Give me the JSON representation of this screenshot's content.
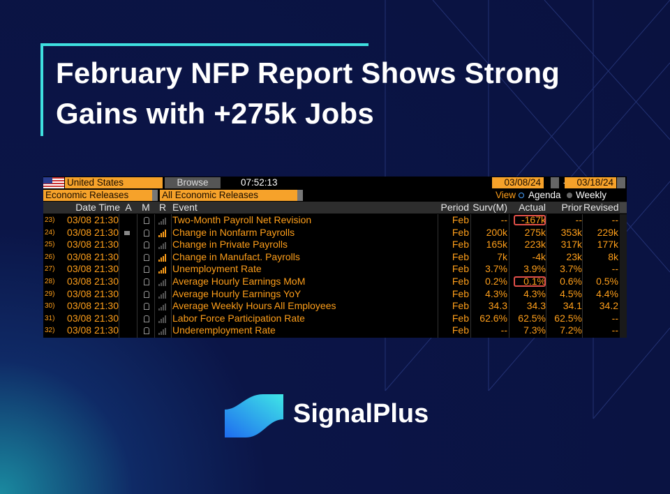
{
  "header": {
    "title": "February NFP Report Shows Strong Gains with +275k Jobs"
  },
  "terminal": {
    "country": "United States",
    "browse": "Browse",
    "time": "07:52:13",
    "date_from": "03/08/24",
    "date_separator": "-",
    "date_to": "03/18/24",
    "category": "Economic Releases",
    "filter": "All Economic Releases",
    "view_label": "View",
    "view_agenda": "Agenda",
    "view_weekly": "Weekly",
    "columns": [
      "Date Time",
      "A",
      "M",
      "R",
      "Event",
      "Period",
      "Surv(M)",
      "Actual",
      "Prior",
      "Revised"
    ],
    "rows": [
      {
        "num": "23)",
        "date": "03/08 21:30",
        "event": "Two-Month Payroll Net Revision",
        "period": "Feb",
        "surv": "--",
        "actual": "-167k",
        "prior": "--",
        "revised": "--"
      },
      {
        "num": "24)",
        "date": "03/08 21:30",
        "event": "Change in Nonfarm Payrolls",
        "period": "Feb",
        "surv": "200k",
        "actual": "275k",
        "prior": "353k",
        "revised": "229k"
      },
      {
        "num": "25)",
        "date": "03/08 21:30",
        "event": "Change in Private Payrolls",
        "period": "Feb",
        "surv": "165k",
        "actual": "223k",
        "prior": "317k",
        "revised": "177k"
      },
      {
        "num": "26)",
        "date": "03/08 21:30",
        "event": "Change in Manufact. Payrolls",
        "period": "Feb",
        "surv": "7k",
        "actual": "-4k",
        "prior": "23k",
        "revised": "8k"
      },
      {
        "num": "27)",
        "date": "03/08 21:30",
        "event": "Unemployment Rate",
        "period": "Feb",
        "surv": "3.7%",
        "actual": "3.9%",
        "prior": "3.7%",
        "revised": "--"
      },
      {
        "num": "28)",
        "date": "03/08 21:30",
        "event": "Average Hourly Earnings MoM",
        "period": "Feb",
        "surv": "0.2%",
        "actual": "0.1%",
        "prior": "0.6%",
        "revised": "0.5%"
      },
      {
        "num": "29)",
        "date": "03/08 21:30",
        "event": "Average Hourly Earnings YoY",
        "period": "Feb",
        "surv": "4.3%",
        "actual": "4.3%",
        "prior": "4.5%",
        "revised": "4.4%"
      },
      {
        "num": "30)",
        "date": "03/08 21:30",
        "event": "Average Weekly Hours All Employees",
        "period": "Feb",
        "surv": "34.3",
        "actual": "34.3",
        "prior": "34.1",
        "revised": "34.2"
      },
      {
        "num": "31)",
        "date": "03/08 21:30",
        "event": "Labor Force Participation Rate",
        "period": "Feb",
        "surv": "62.6%",
        "actual": "62.5%",
        "prior": "62.5%",
        "revised": "--"
      },
      {
        "num": "32)",
        "date": "03/08 21:30",
        "event": "Underemployment Rate",
        "period": "Feb",
        "surv": "--",
        "actual": "7.3%",
        "prior": "7.2%",
        "revised": "--"
      }
    ]
  },
  "brand": {
    "name": "SignalPlus"
  }
}
